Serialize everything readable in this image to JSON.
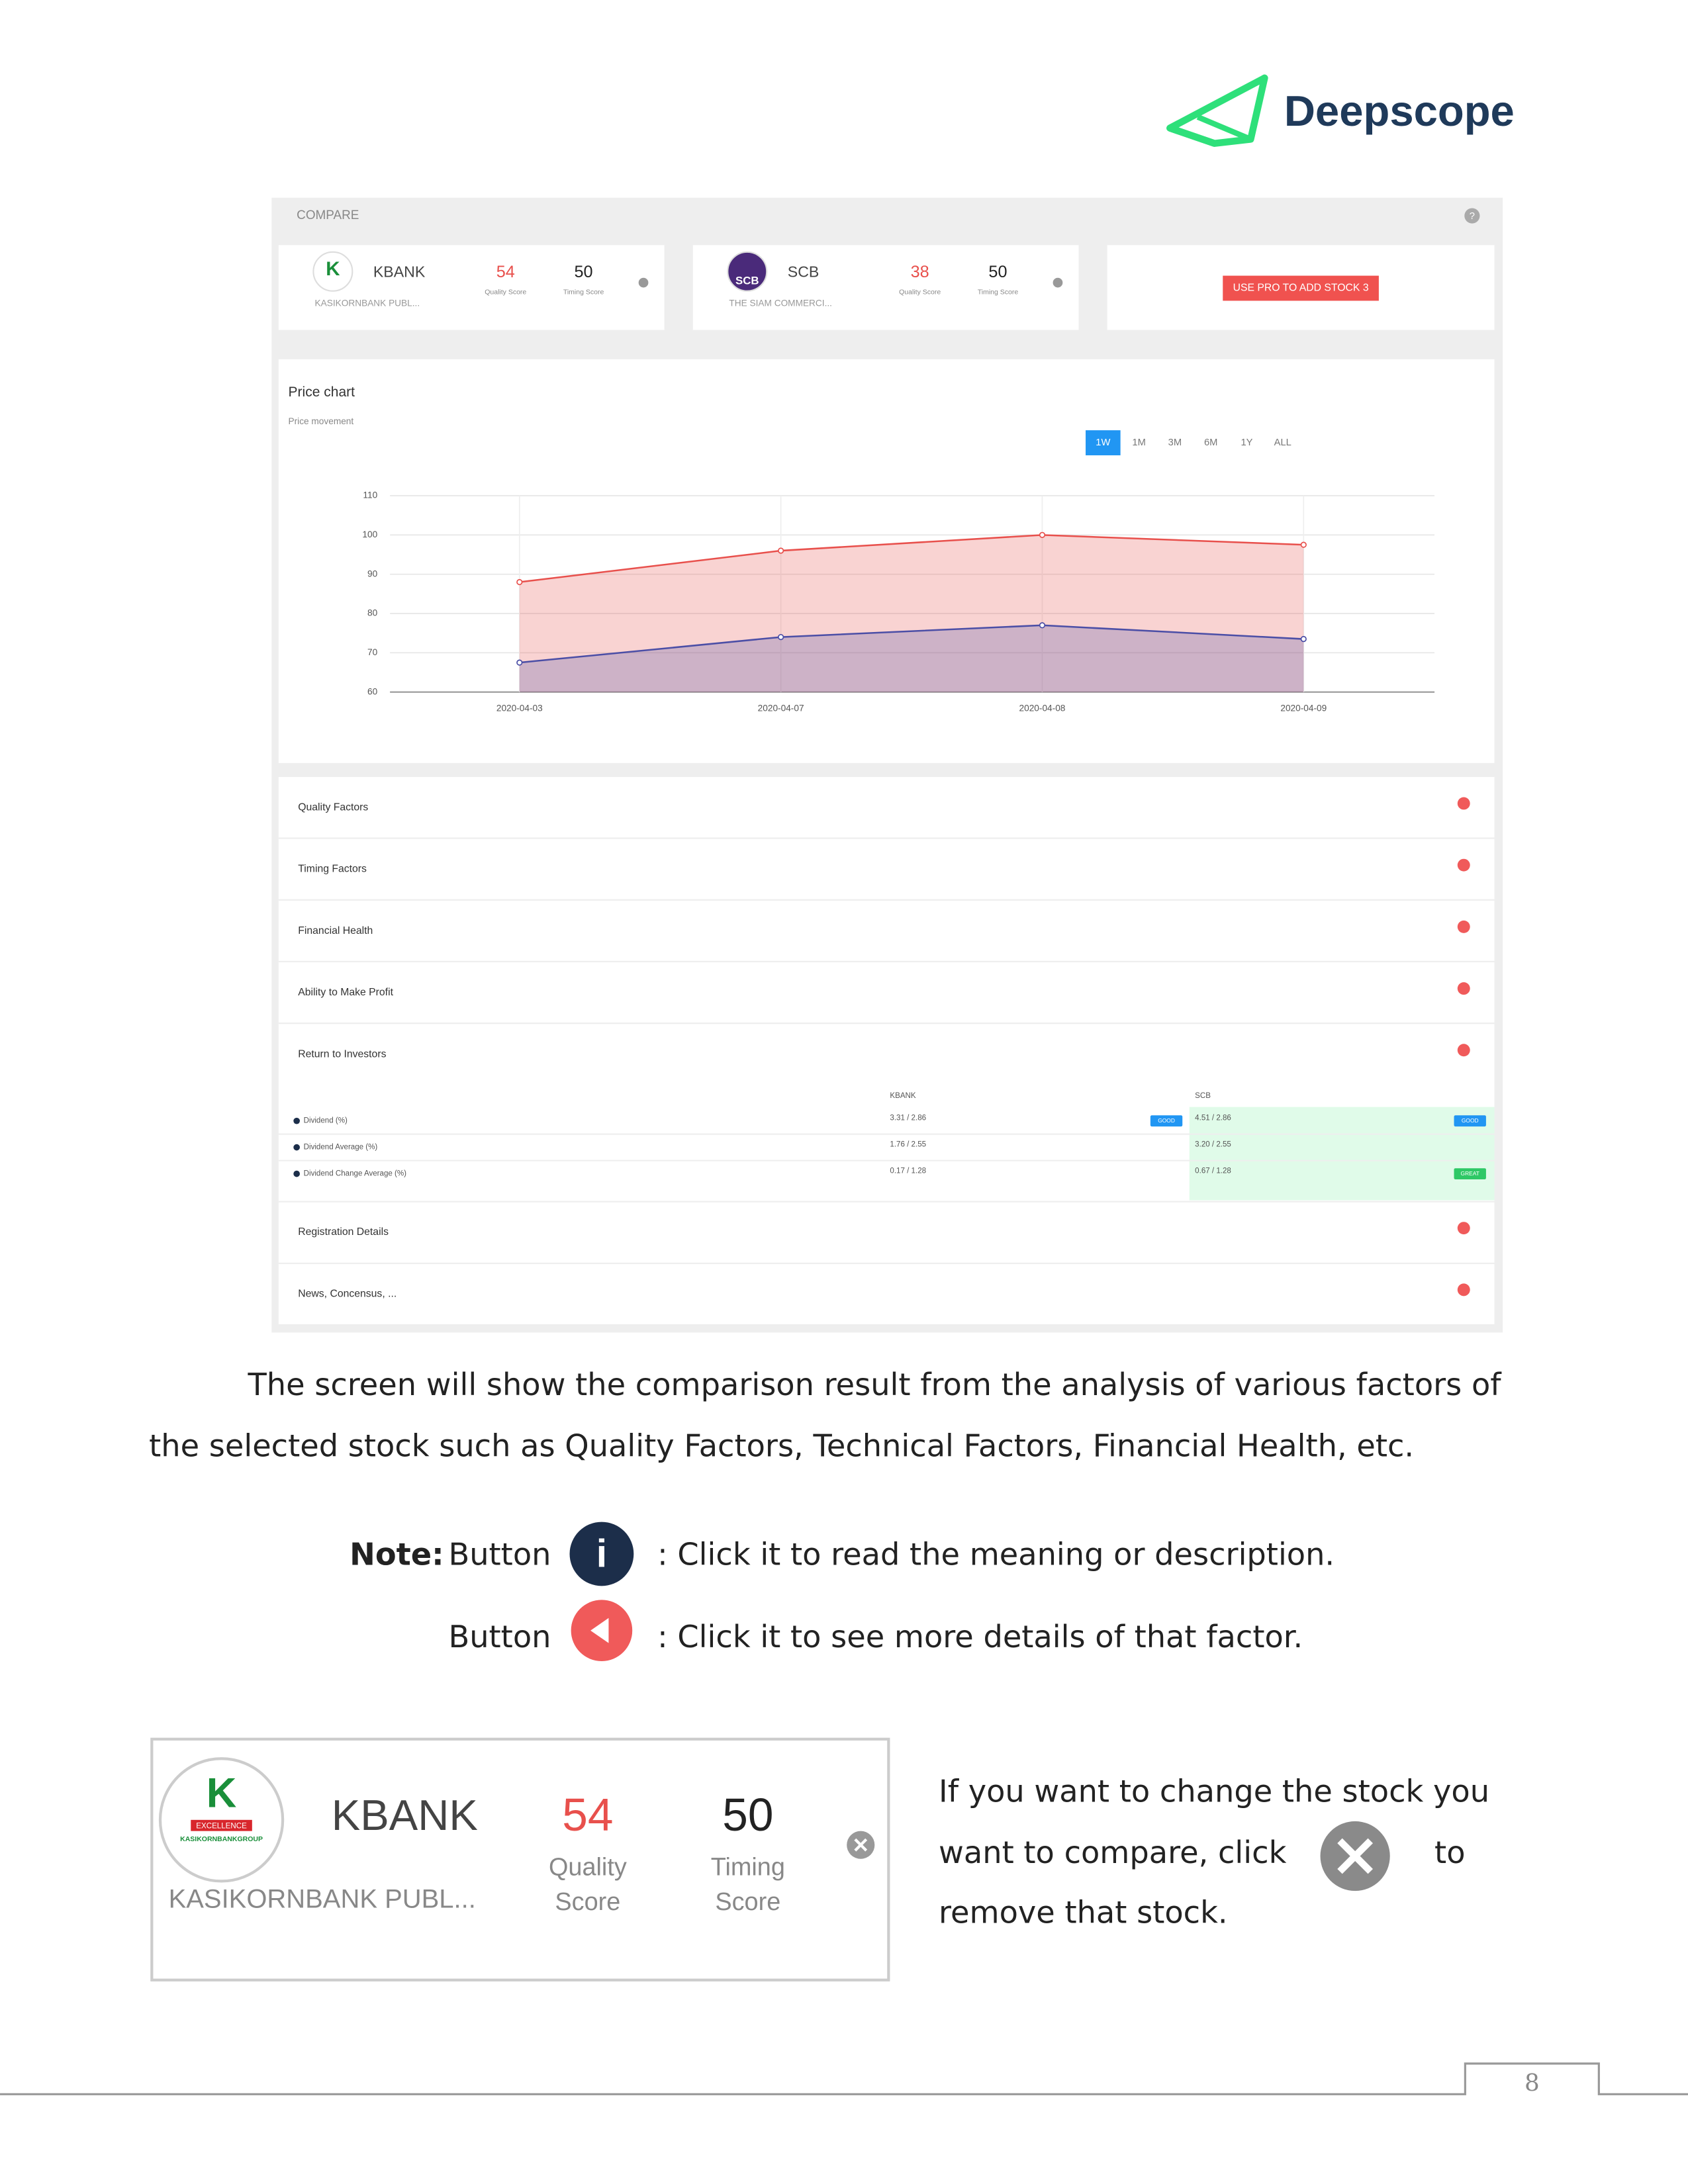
{
  "header": {
    "brand": "Deepscope"
  },
  "screenshot": {
    "compare": {
      "title": "COMPARE",
      "help": "?",
      "stocks": [
        {
          "logo": "K",
          "ticker": "KBANK",
          "name": "KASIKORNBANK PUBL...",
          "quality_score": 54,
          "quality_label": "Quality Score",
          "timing_score": 50,
          "timing_label": "Timing Score"
        },
        {
          "logo": "SCB",
          "ticker": "SCB",
          "name": "THE SIAM COMMERCI...",
          "quality_score": 38,
          "quality_label": "Quality Score",
          "timing_score": 50,
          "timing_label": "Timing Score"
        }
      ],
      "pro_button": "USE PRO TO ADD STOCK 3"
    },
    "price_chart": {
      "type": "line",
      "title": "Price chart",
      "subtitle": "Price movement",
      "ranges": [
        "1W",
        "1M",
        "3M",
        "6M",
        "1Y",
        "ALL"
      ],
      "selected_range": "1W",
      "x": [
        "2020-04-03",
        "2020-04-07",
        "2020-04-08",
        "2020-04-09"
      ],
      "series": [
        {
          "color": "#e8504c",
          "values": [
            88,
            96,
            100,
            97.5
          ]
        },
        {
          "color": "#4b4ea6",
          "values": [
            67.5,
            74,
            77,
            73.5
          ]
        }
      ],
      "ylim": [
        60,
        110
      ],
      "yticks": [
        60,
        70,
        80,
        90,
        100,
        110
      ],
      "grid": true
    },
    "factors": [
      "Quality Factors",
      "Timing Factors",
      "Financial Health",
      "Ability to Make Profit",
      "Return to Investors"
    ],
    "return_table": {
      "headers": [
        "KBANK",
        "SCB"
      ],
      "rows": [
        {
          "label": "Dividend (%)",
          "kbank": "3.31 / 2.86",
          "kbank_badge": "GOOD",
          "scb": "4.51 / 2.86",
          "scb_badge": "GOOD"
        },
        {
          "label": "Dividend Average (%)",
          "kbank": "1.76 / 2.55",
          "scb": "3.20 / 2.55"
        },
        {
          "label": "Dividend Change Average (%)",
          "kbank": "0.17 / 1.28",
          "scb": "0.67 / 1.28",
          "scb_badge": "GREAT"
        }
      ]
    },
    "more_factors": [
      "Registration Details",
      "News, Concensus, ..."
    ]
  },
  "description": {
    "lines": [
      "The screen will show the comparison result from the analysis of various factors of",
      "the selected stock such as Quality Factors, Technical Factors, Financial Health, etc."
    ]
  },
  "notes": {
    "label": "Note:",
    "items": [
      {
        "prefix": "Button",
        "icon": "i",
        "text": ": Click it to read the meaning or description."
      },
      {
        "prefix": "Button",
        "text": ": Click it to see more details of that factor."
      }
    ]
  },
  "example_card": {
    "logo": "K",
    "logo_top": "EXCELLENCE",
    "logo_bottom": "KASIKORNBANKGROUP",
    "ticker": "KBANK",
    "name": "KASIKORNBANK PUBL...",
    "quality_score": 54,
    "quality_label": [
      "Quality",
      "Score"
    ],
    "timing_score": 50,
    "timing_label": [
      "Timing",
      "Score"
    ]
  },
  "remove_note": {
    "lines": [
      "If you want to change the stock you",
      "want to compare, click",
      "to",
      "remove that stock."
    ]
  },
  "footer": {
    "page": 8
  }
}
